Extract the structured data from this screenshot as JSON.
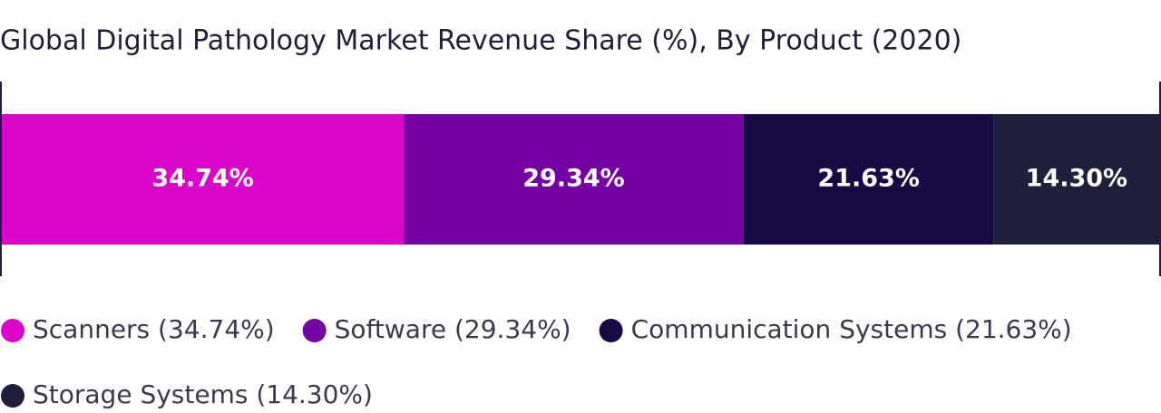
{
  "chart_data": {
    "type": "bar",
    "orientation": "horizontal",
    "stacked": true,
    "title": "Global Digital Pathology Market Revenue Share (%), By Product (2020)",
    "categories": [
      null
    ],
    "series": [
      {
        "name": "Scanners (34.74%)",
        "color": "#d906c9",
        "values": [
          34.74
        ],
        "value_labels": [
          "34.74%"
        ]
      },
      {
        "name": "Software (29.34%)",
        "color": "#7400a3",
        "values": [
          29.34
        ],
        "value_labels": [
          "29.34%"
        ]
      },
      {
        "name": "Communication Systems (21.63%)",
        "color": "#170a44",
        "values": [
          21.63
        ],
        "value_labels": [
          "21.63%"
        ]
      },
      {
        "name": "Storage Systems (14.30%)",
        "color": "#1f1f3b",
        "values": [
          14.3
        ],
        "value_labels": [
          "14.30%"
        ]
      }
    ],
    "xlim": [
      0,
      100
    ],
    "legend": "bottom"
  }
}
